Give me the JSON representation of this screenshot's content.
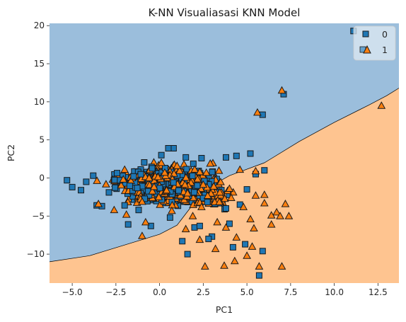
{
  "chart_data": {
    "type": "scatter",
    "title": "K-NN Visualiasasi KNN Model",
    "xlabel": "PC1",
    "ylabel": "PC2",
    "xlim": [
      -6.3,
      13.7
    ],
    "ylim": [
      -13.8,
      20.3
    ],
    "xticks": [
      -5.0,
      -2.5,
      0.0,
      2.5,
      5.0,
      7.5,
      10.0,
      12.5
    ],
    "xtick_labels": [
      "−5.0",
      "−2.5",
      "0.0",
      "2.5",
      "5.0",
      "7.5",
      "10.0",
      "12.5"
    ],
    "yticks": [
      -10,
      -5,
      0,
      5,
      10,
      15,
      20
    ],
    "ytick_labels": [
      "−10",
      "−5",
      "0",
      "5",
      "10",
      "15",
      "20"
    ],
    "grid": false,
    "legend_position": "top-right",
    "decision_regions": [
      {
        "class": "0",
        "color": "#9bbedc"
      },
      {
        "class": "1",
        "color": "#fec490"
      }
    ],
    "decision_boundary": [
      [
        -6.3,
        -11.0
      ],
      [
        -4.0,
        -10.2
      ],
      [
        -2.0,
        -8.8
      ],
      [
        0.0,
        -7.4
      ],
      [
        1.0,
        -6.2
      ],
      [
        1.8,
        -3.8
      ],
      [
        2.6,
        -1.5
      ],
      [
        4.0,
        0.3
      ],
      [
        6.0,
        2.0
      ],
      [
        8.0,
        4.8
      ],
      [
        10.0,
        7.3
      ],
      [
        12.0,
        9.6
      ],
      [
        13.0,
        10.8
      ],
      [
        13.7,
        11.8
      ]
    ],
    "series": [
      {
        "name": "0",
        "marker": "square",
        "color": "#1f77b4",
        "points": [
          [
            11.1,
            19.3
          ],
          [
            7.1,
            11.0
          ],
          [
            5.9,
            8.3
          ],
          [
            5.7,
            -12.8
          ],
          [
            5.9,
            -9.6
          ],
          [
            -5.3,
            -0.3
          ],
          [
            -5.0,
            -1.2
          ],
          [
            -3.6,
            -3.6
          ],
          [
            -3.3,
            -3.7
          ],
          [
            -2.0,
            -3.6
          ],
          [
            -0.5,
            -6.3
          ],
          [
            1.3,
            -8.3
          ],
          [
            4.9,
            -8.7
          ],
          [
            4.2,
            -9.1
          ],
          [
            1.6,
            -10.0
          ],
          [
            5.2,
            3.2
          ],
          [
            4.4,
            2.9
          ],
          [
            0.8,
            3.9
          ],
          [
            0.5,
            3.9
          ],
          [
            0.1,
            3.0
          ],
          [
            1.5,
            2.7
          ],
          [
            2.4,
            2.6
          ],
          [
            3.8,
            2.7
          ],
          [
            2.0,
            -6.5
          ],
          [
            3.0,
            -7.7
          ],
          [
            -1.8,
            -6.1
          ],
          [
            6.0,
            1.0
          ],
          [
            5.5,
            0.5
          ],
          [
            3.8,
            -4.0
          ],
          [
            -4.5,
            -1.6
          ],
          [
            -3.8,
            0.3
          ],
          [
            -2.9,
            -1.9
          ],
          [
            -1.2,
            -4.2
          ],
          [
            0.6,
            -5.2
          ],
          [
            2.3,
            -6.3
          ],
          [
            4.6,
            -3.5
          ],
          [
            5.0,
            -1.5
          ],
          [
            4.0,
            -6.0
          ],
          [
            2.8,
            -8.0
          ],
          [
            -4.2,
            -0.5
          ]
        ],
        "note_cluster": true
      },
      {
        "name": "1",
        "marker": "triangle",
        "color": "#ff7f0e",
        "points": [
          [
            7.0,
            11.5
          ],
          [
            12.7,
            9.5
          ],
          [
            5.6,
            8.6
          ],
          [
            7.0,
            -11.6
          ],
          [
            5.7,
            -11.6
          ],
          [
            2.6,
            -11.6
          ],
          [
            3.7,
            -11.5
          ],
          [
            4.3,
            -10.9
          ],
          [
            5.0,
            -10.2
          ],
          [
            5.3,
            -9.0
          ],
          [
            7.4,
            -5.0
          ],
          [
            6.4,
            -6.1
          ],
          [
            7.2,
            -3.4
          ],
          [
            6.7,
            -4.5
          ],
          [
            6.9,
            -5.0
          ],
          [
            5.4,
            -6.6
          ],
          [
            6.4,
            -4.9
          ],
          [
            6.0,
            -2.2
          ],
          [
            5.5,
            0.9
          ],
          [
            4.6,
            1.1
          ],
          [
            -1.9,
            -4.8
          ],
          [
            -2.6,
            -4.2
          ],
          [
            -3.5,
            -3.4
          ],
          [
            -1.0,
            -7.6
          ],
          [
            2.3,
            -8.1
          ],
          [
            3.2,
            -9.3
          ],
          [
            4.4,
            -7.8
          ],
          [
            3.8,
            -6.5
          ],
          [
            1.5,
            -6.7
          ],
          [
            -0.8,
            -5.8
          ],
          [
            5.2,
            -5.4
          ],
          [
            4.8,
            -3.8
          ],
          [
            4.0,
            -1.4
          ],
          [
            5.5,
            -2.3
          ],
          [
            6.0,
            -3.3
          ],
          [
            2.4,
            -3.8
          ],
          [
            0.7,
            -4.3
          ],
          [
            -1.0,
            -3.1
          ],
          [
            1.9,
            -5.0
          ],
          [
            3.3,
            -5.8
          ],
          [
            2.9,
            1.9
          ],
          [
            1.0,
            1.6
          ],
          [
            0.1,
            2.0
          ],
          [
            -2.0,
            1.1
          ],
          [
            1.6,
            -2.0
          ],
          [
            3.1,
            -1.1
          ],
          [
            0.4,
            -1.6
          ],
          [
            2.3,
            0.8
          ],
          [
            4.1,
            -2.6
          ],
          [
            -0.6,
            0.0
          ]
        ]
      }
    ]
  }
}
